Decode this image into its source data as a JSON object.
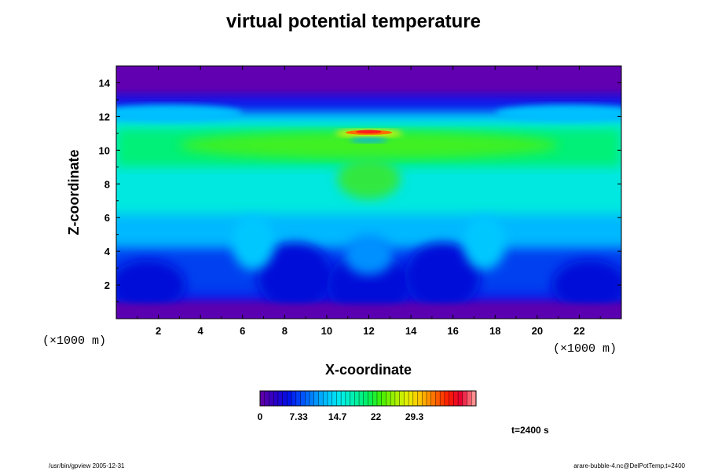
{
  "chart_data": {
    "type": "heatmap",
    "title": "virtual potential temperature",
    "xlabel": "X-coordinate",
    "ylabel": "Z-coordinate",
    "x_unit": "(×1000 m)",
    "y_unit": "(×1000 m)",
    "xlim": [
      0,
      24
    ],
    "ylim": [
      0,
      15
    ],
    "x_ticks": [
      "2",
      "4",
      "6",
      "8",
      "10",
      "12",
      "14",
      "16",
      "18",
      "20",
      "22"
    ],
    "y_ticks": [
      "2",
      "4",
      "6",
      "8",
      "10",
      "12",
      "14"
    ],
    "colorbar": {
      "range": [
        0,
        41
      ],
      "tick_labels": [
        "0",
        "7.33",
        "14.7",
        "22",
        "29.3"
      ],
      "tick_values": [
        0,
        7.33,
        14.7,
        22,
        29.3
      ],
      "colors": [
        "#5c00a8",
        "#2a00c8",
        "#0010e8",
        "#0050ff",
        "#0090ff",
        "#00c8ff",
        "#00f0e8",
        "#00f0a8",
        "#00f060",
        "#40f000",
        "#a0f000",
        "#e8f000",
        "#ffc000",
        "#ff7000",
        "#ff2000",
        "#e80030",
        "#ff9090"
      ]
    },
    "time": "t=2400 s"
  },
  "footer": {
    "left": "/usr/bin/gpview 2005-12-31",
    "right": "arare-bubble-4.nc@DelPotTemp,t=2400"
  }
}
